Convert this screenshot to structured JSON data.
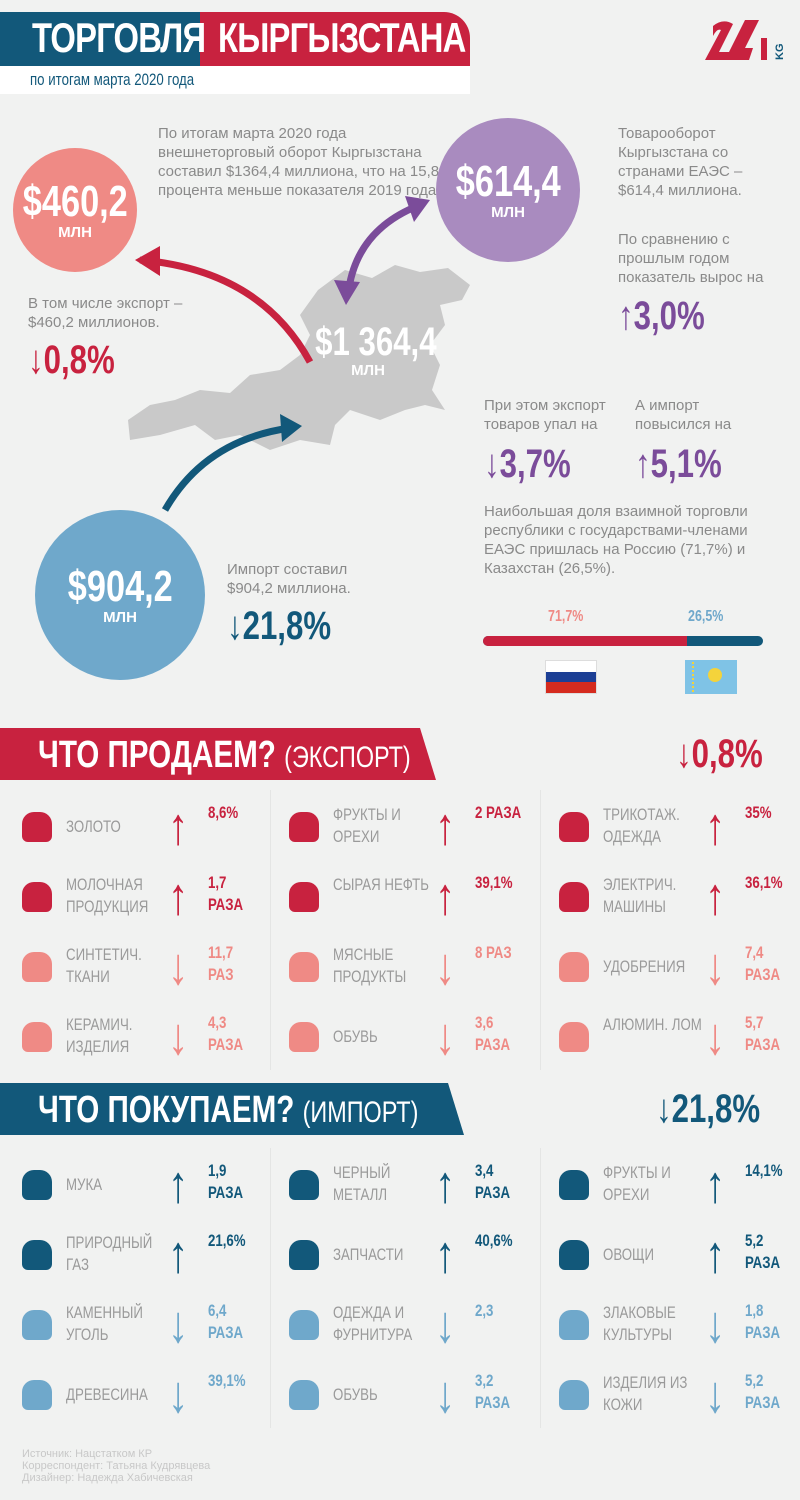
{
  "header": {
    "title_left": "ТОРГОВЛЯ",
    "title_right": "КЫРГЫЗСТАНА",
    "subtitle": "по итогам марта 2020 года",
    "logo": "24.kg"
  },
  "colors": {
    "blue": "#12587a",
    "red": "#c8223f",
    "salmon": "#ef8a85",
    "purple": "#a98bbf",
    "lightblue": "#6fa8cb",
    "purple_text": "#7b4c9a",
    "map_grey": "#c9c9c9"
  },
  "overview": {
    "intro": "По итогам марта 2020 года внешнеторговый оборот Кыргызстана составил $1364,4 миллиона, что на 15,8 процента меньше показателя 2019 года.",
    "total": {
      "value": "$1 364,4",
      "unit": "МЛН"
    },
    "export": {
      "value": "$460,2",
      "unit": "МЛН",
      "text": "В том числе экспорт – $460,2 миллионов.",
      "change": "0,8%",
      "direction": "down"
    },
    "eaeu": {
      "value": "$614,4",
      "unit": "МЛН",
      "text": "Товарооборот Кыргызстана со странами ЕАЭС – $614,4 миллиона.",
      "text2": "По сравнению с прошлым годом показатель вырос на",
      "change": "3,0%",
      "direction": "up"
    },
    "eaeu_export": {
      "text": "При этом экспорт товаров упал на",
      "change": "3,7%",
      "direction": "down"
    },
    "eaeu_import": {
      "text": "А импорт повысился на",
      "change": "5,1%",
      "direction": "up"
    },
    "import": {
      "value": "$904,2",
      "unit": "МЛН",
      "text": "Импорт составил $904,2 миллиона.",
      "change": "21,8%",
      "direction": "down"
    },
    "share_text": "Наибольшая доля взаимной торговли республики с государствами-членами ЕАЭС пришлась на Россию (71,7%) и Казахстан (26,5%).",
    "share": {
      "russia_label": "71,7%",
      "russia": 71.7,
      "kazakhstan_label": "26,5%",
      "kazakhstan": 26.5,
      "flags": [
        "russia-flag",
        "kazakhstan-flag"
      ]
    }
  },
  "export_section": {
    "title": "ЧТО ПРОДАЕМ?",
    "subtitle": "(ЭКСПОРТ)",
    "change": "0,8%",
    "direction": "down",
    "items": [
      {
        "icon": "gold-bars-icon",
        "label": "ЗОЛОТО",
        "dir": "up",
        "value": "8,6%"
      },
      {
        "icon": "apple-icon",
        "label": "ФРУКТЫ И ОРЕХИ",
        "dir": "up",
        "value": "2 РАЗА"
      },
      {
        "icon": "tshirt-icon",
        "label": "ТРИКОТАЖ. ОДЕЖДА",
        "dir": "up",
        "value": "35%"
      },
      {
        "icon": "milk-icon",
        "label": "МОЛОЧНАЯ ПРОДУКЦИЯ",
        "dir": "up",
        "value": "1,7 РАЗА"
      },
      {
        "icon": "oil-canister-icon",
        "label": "СЫРАЯ НЕФТЬ",
        "dir": "up",
        "value": "39,1%"
      },
      {
        "icon": "electric-icon",
        "label": "ЭЛЕКТРИЧ. МАШИНЫ",
        "dir": "up",
        "value": "36,1%"
      },
      {
        "icon": "fabric-roll-icon",
        "label": "СИНТЕТИЧ. ТКАНИ",
        "dir": "down",
        "value": "11,7 РАЗ"
      },
      {
        "icon": "meat-icon",
        "label": "МЯСНЫЕ ПРОДУКТЫ",
        "dir": "down",
        "value": "8 РАЗ"
      },
      {
        "icon": "leaf-icon",
        "label": "УДОБРЕНИЯ",
        "dir": "down",
        "value": "7,4 РАЗА"
      },
      {
        "icon": "cup-icon",
        "label": "КЕРАМИЧ. ИЗДЕЛИЯ",
        "dir": "down",
        "value": "4,3 РАЗА"
      },
      {
        "icon": "boot-icon",
        "label": "ОБУВЬ",
        "dir": "down",
        "value": "3,6 РАЗА"
      },
      {
        "icon": "scrap-wire-icon",
        "label": "АЛЮМИН. ЛОМ",
        "dir": "down",
        "value": "5,7 РАЗА"
      }
    ]
  },
  "import_section": {
    "title": "ЧТО ПОКУПАЕМ?",
    "subtitle": "(ИМПОРТ)",
    "change": "21,8%",
    "direction": "down",
    "items": [
      {
        "icon": "wheat-icon",
        "label": "МУКА",
        "dir": "up",
        "value": "1,9 РАЗА"
      },
      {
        "icon": "chain-icon",
        "label": "ЧЕРНЫЙ МЕТАЛЛ",
        "dir": "up",
        "value": "3,4 РАЗА"
      },
      {
        "icon": "apple-icon",
        "label": "ФРУКТЫ И ОРЕХИ",
        "dir": "up",
        "value": "14,1%"
      },
      {
        "icon": "gas-flame-icon",
        "label": "ПРИРОДНЫЙ ГАЗ",
        "dir": "up",
        "value": "21,6%"
      },
      {
        "icon": "gears-icon",
        "label": "ЗАПЧАСТИ",
        "dir": "up",
        "value": "40,6%"
      },
      {
        "icon": "broccoli-icon",
        "label": "ОВОЩИ",
        "dir": "up",
        "value": "5,2 РАЗА"
      },
      {
        "icon": "coal-wagon-icon",
        "label": "КАМЕННЫЙ УГОЛЬ",
        "dir": "down",
        "value": "6,4 РАЗА"
      },
      {
        "icon": "dress-icon",
        "label": "ОДЕЖДА И ФУРНИТУРА",
        "dir": "down",
        "value": "2,3"
      },
      {
        "icon": "grain-icon",
        "label": "ЗЛАКОВЫЕ КУЛЬТУРЫ",
        "dir": "down",
        "value": "1,8 РАЗА"
      },
      {
        "icon": "trees-icon",
        "label": "ДРЕВЕСИНА",
        "dir": "down",
        "value": "39,1%"
      },
      {
        "icon": "boot-icon",
        "label": "ОБУВЬ",
        "dir": "down",
        "value": "3,2 РАЗА"
      },
      {
        "icon": "leather-icon",
        "label": "ИЗДЕЛИЯ ИЗ КОЖИ",
        "dir": "down",
        "value": "5,2 РАЗА"
      }
    ]
  },
  "footer": {
    "source": "Источник: Нацстатком КР",
    "correspondent": "Корреспондент: Татьяна Кудрявцева",
    "designer": "Дизайнер: Надежда Хабичевская"
  }
}
